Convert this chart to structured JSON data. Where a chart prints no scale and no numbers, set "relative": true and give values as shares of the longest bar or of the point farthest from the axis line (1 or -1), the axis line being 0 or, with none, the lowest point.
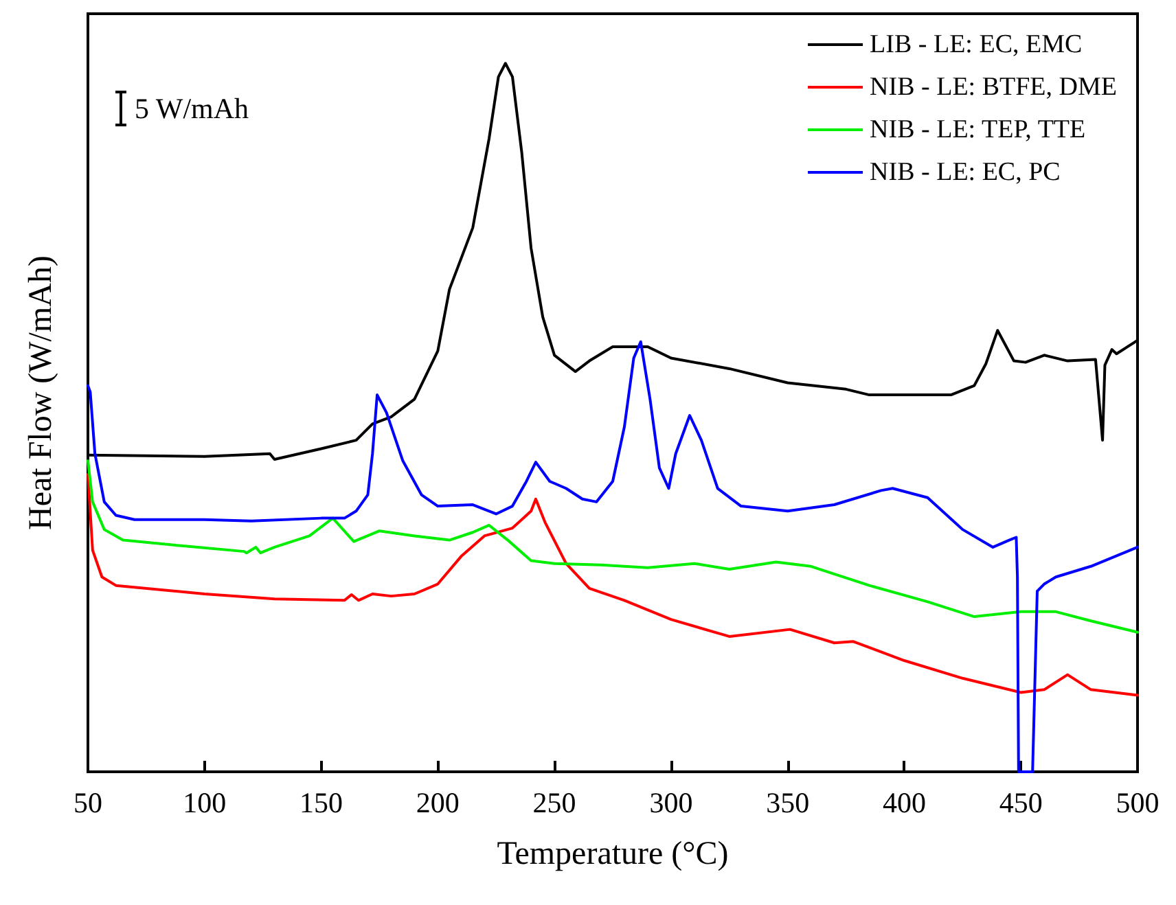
{
  "chart_data": {
    "type": "line",
    "relative": true,
    "xlabel": "Temperature (°C)",
    "ylabel": "Heat Flow (W/mAh)",
    "xlim": [
      50,
      500
    ],
    "xticks": [
      50,
      100,
      150,
      200,
      250,
      300,
      350,
      400,
      450,
      500
    ],
    "legend": "top right",
    "grid": false,
    "marker": "none",
    "line_style": "solid",
    "annotations": [
      "5 W/mAh"
    ],
    "series": [
      {
        "name": "LIB - LE: EC, EMC",
        "color": "#000000",
        "x": [
          50,
          100,
          128,
          130,
          150,
          165,
          172,
          180,
          190,
          200,
          205,
          215,
          222,
          226,
          229,
          232,
          236,
          240,
          245,
          250,
          259,
          265,
          275,
          290,
          300,
          325,
          350,
          375,
          385,
          420,
          430,
          435,
          440,
          447,
          452,
          460,
          470,
          482,
          485,
          486,
          489,
          491,
          500
        ],
        "values": [
          0.447,
          0.445,
          0.449,
          0.441,
          0.456,
          0.468,
          0.491,
          0.501,
          0.526,
          0.594,
          0.681,
          0.768,
          0.894,
          0.981,
          1.0,
          0.981,
          0.874,
          0.739,
          0.642,
          0.588,
          0.565,
          0.58,
          0.6,
          0.6,
          0.584,
          0.569,
          0.549,
          0.54,
          0.532,
          0.532,
          0.545,
          0.576,
          0.623,
          0.58,
          0.578,
          0.588,
          0.58,
          0.582,
          0.468,
          0.574,
          0.596,
          0.59,
          0.609
        ]
      },
      {
        "name": "NIB - LE: BTFE, DME",
        "color": "#ff0000",
        "x": [
          50,
          52,
          56,
          62,
          100,
          130,
          160,
          163,
          166,
          172,
          180,
          190,
          200,
          210,
          220,
          232,
          240,
          242,
          246,
          255,
          265,
          280,
          300,
          325,
          351,
          370,
          378,
          400,
          425,
          450,
          460,
          470,
          480,
          500
        ],
        "values": [
          0.42,
          0.313,
          0.275,
          0.263,
          0.251,
          0.244,
          0.242,
          0.25,
          0.242,
          0.251,
          0.248,
          0.251,
          0.265,
          0.304,
          0.333,
          0.344,
          0.368,
          0.385,
          0.352,
          0.294,
          0.259,
          0.242,
          0.215,
          0.191,
          0.201,
          0.182,
          0.184,
          0.157,
          0.132,
          0.112,
          0.116,
          0.137,
          0.116,
          0.108
        ]
      },
      {
        "name": "NIB - LE: TEP, TTE",
        "color": "#00ee00",
        "x": [
          50,
          52,
          57,
          65,
          90,
          117,
          118,
          122,
          124,
          130,
          145,
          155,
          164,
          175,
          190,
          205,
          215,
          222,
          230,
          240,
          250,
          270,
          290,
          310,
          325,
          345,
          360,
          385,
          410,
          430,
          450,
          465,
          480,
          500
        ],
        "values": [
          0.439,
          0.381,
          0.342,
          0.327,
          0.319,
          0.311,
          0.309,
          0.317,
          0.309,
          0.317,
          0.333,
          0.358,
          0.325,
          0.34,
          0.333,
          0.327,
          0.338,
          0.348,
          0.327,
          0.298,
          0.294,
          0.292,
          0.288,
          0.294,
          0.286,
          0.296,
          0.29,
          0.263,
          0.24,
          0.219,
          0.226,
          0.226,
          0.213,
          0.197
        ]
      },
      {
        "name": "NIB - LE: EC, PC",
        "color": "#0000ff",
        "x": [
          50,
          51,
          53,
          57,
          62,
          70,
          100,
          120,
          150,
          160,
          165,
          170,
          172,
          174,
          178,
          185,
          193,
          200,
          215,
          225,
          232,
          238,
          242,
          248,
          255,
          262,
          268,
          275,
          280,
          284,
          287,
          291,
          295,
          299,
          302,
          308,
          313,
          320,
          330,
          350,
          370,
          390,
          395,
          410,
          425,
          438,
          445,
          448,
          448.5,
          449,
          452,
          455,
          457,
          460,
          465,
          480,
          500
        ],
        "values": [
          0.545,
          0.536,
          0.449,
          0.381,
          0.362,
          0.356,
          0.356,
          0.354,
          0.358,
          0.358,
          0.368,
          0.391,
          0.449,
          0.532,
          0.507,
          0.439,
          0.391,
          0.375,
          0.377,
          0.364,
          0.375,
          0.41,
          0.437,
          0.41,
          0.4,
          0.385,
          0.381,
          0.41,
          0.487,
          0.584,
          0.607,
          0.526,
          0.429,
          0.4,
          0.449,
          0.503,
          0.468,
          0.4,
          0.375,
          0.368,
          0.377,
          0.397,
          0.4,
          0.387,
          0.342,
          0.317,
          0.327,
          0.331,
          0.275,
          0,
          0,
          0,
          0.255,
          0.265,
          0.275,
          0.29,
          0.317
        ]
      }
    ]
  }
}
